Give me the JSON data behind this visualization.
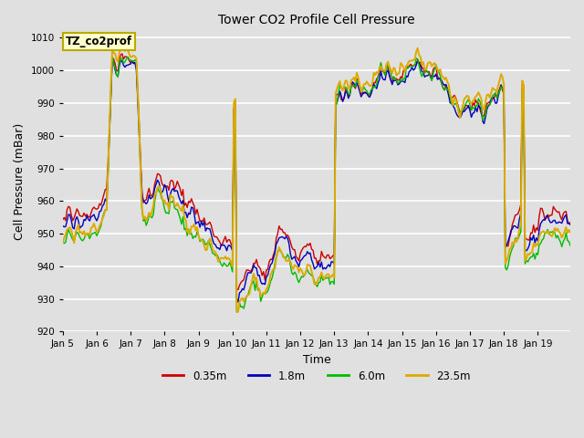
{
  "title": "Tower CO2 Profile Cell Pressure",
  "xlabel": "Time",
  "ylabel": "Cell Pressure (mBar)",
  "ylim": [
    920,
    1012
  ],
  "yticks": [
    920,
    930,
    940,
    950,
    960,
    970,
    980,
    990,
    1000,
    1010
  ],
  "legend_label": "TZ_co2prof",
  "colors": {
    "0.35m": "#cc0000",
    "1.8m": "#0000bb",
    "6.0m": "#00bb00",
    "23.5m": "#ddaa00"
  },
  "lws": {
    "0.35m": 1.0,
    "1.8m": 1.0,
    "6.0m": 1.0,
    "23.5m": 1.4
  },
  "bg_color": "#e0e0e0",
  "grid_color": "#ffffff",
  "start_day": 5,
  "end_day": 20
}
